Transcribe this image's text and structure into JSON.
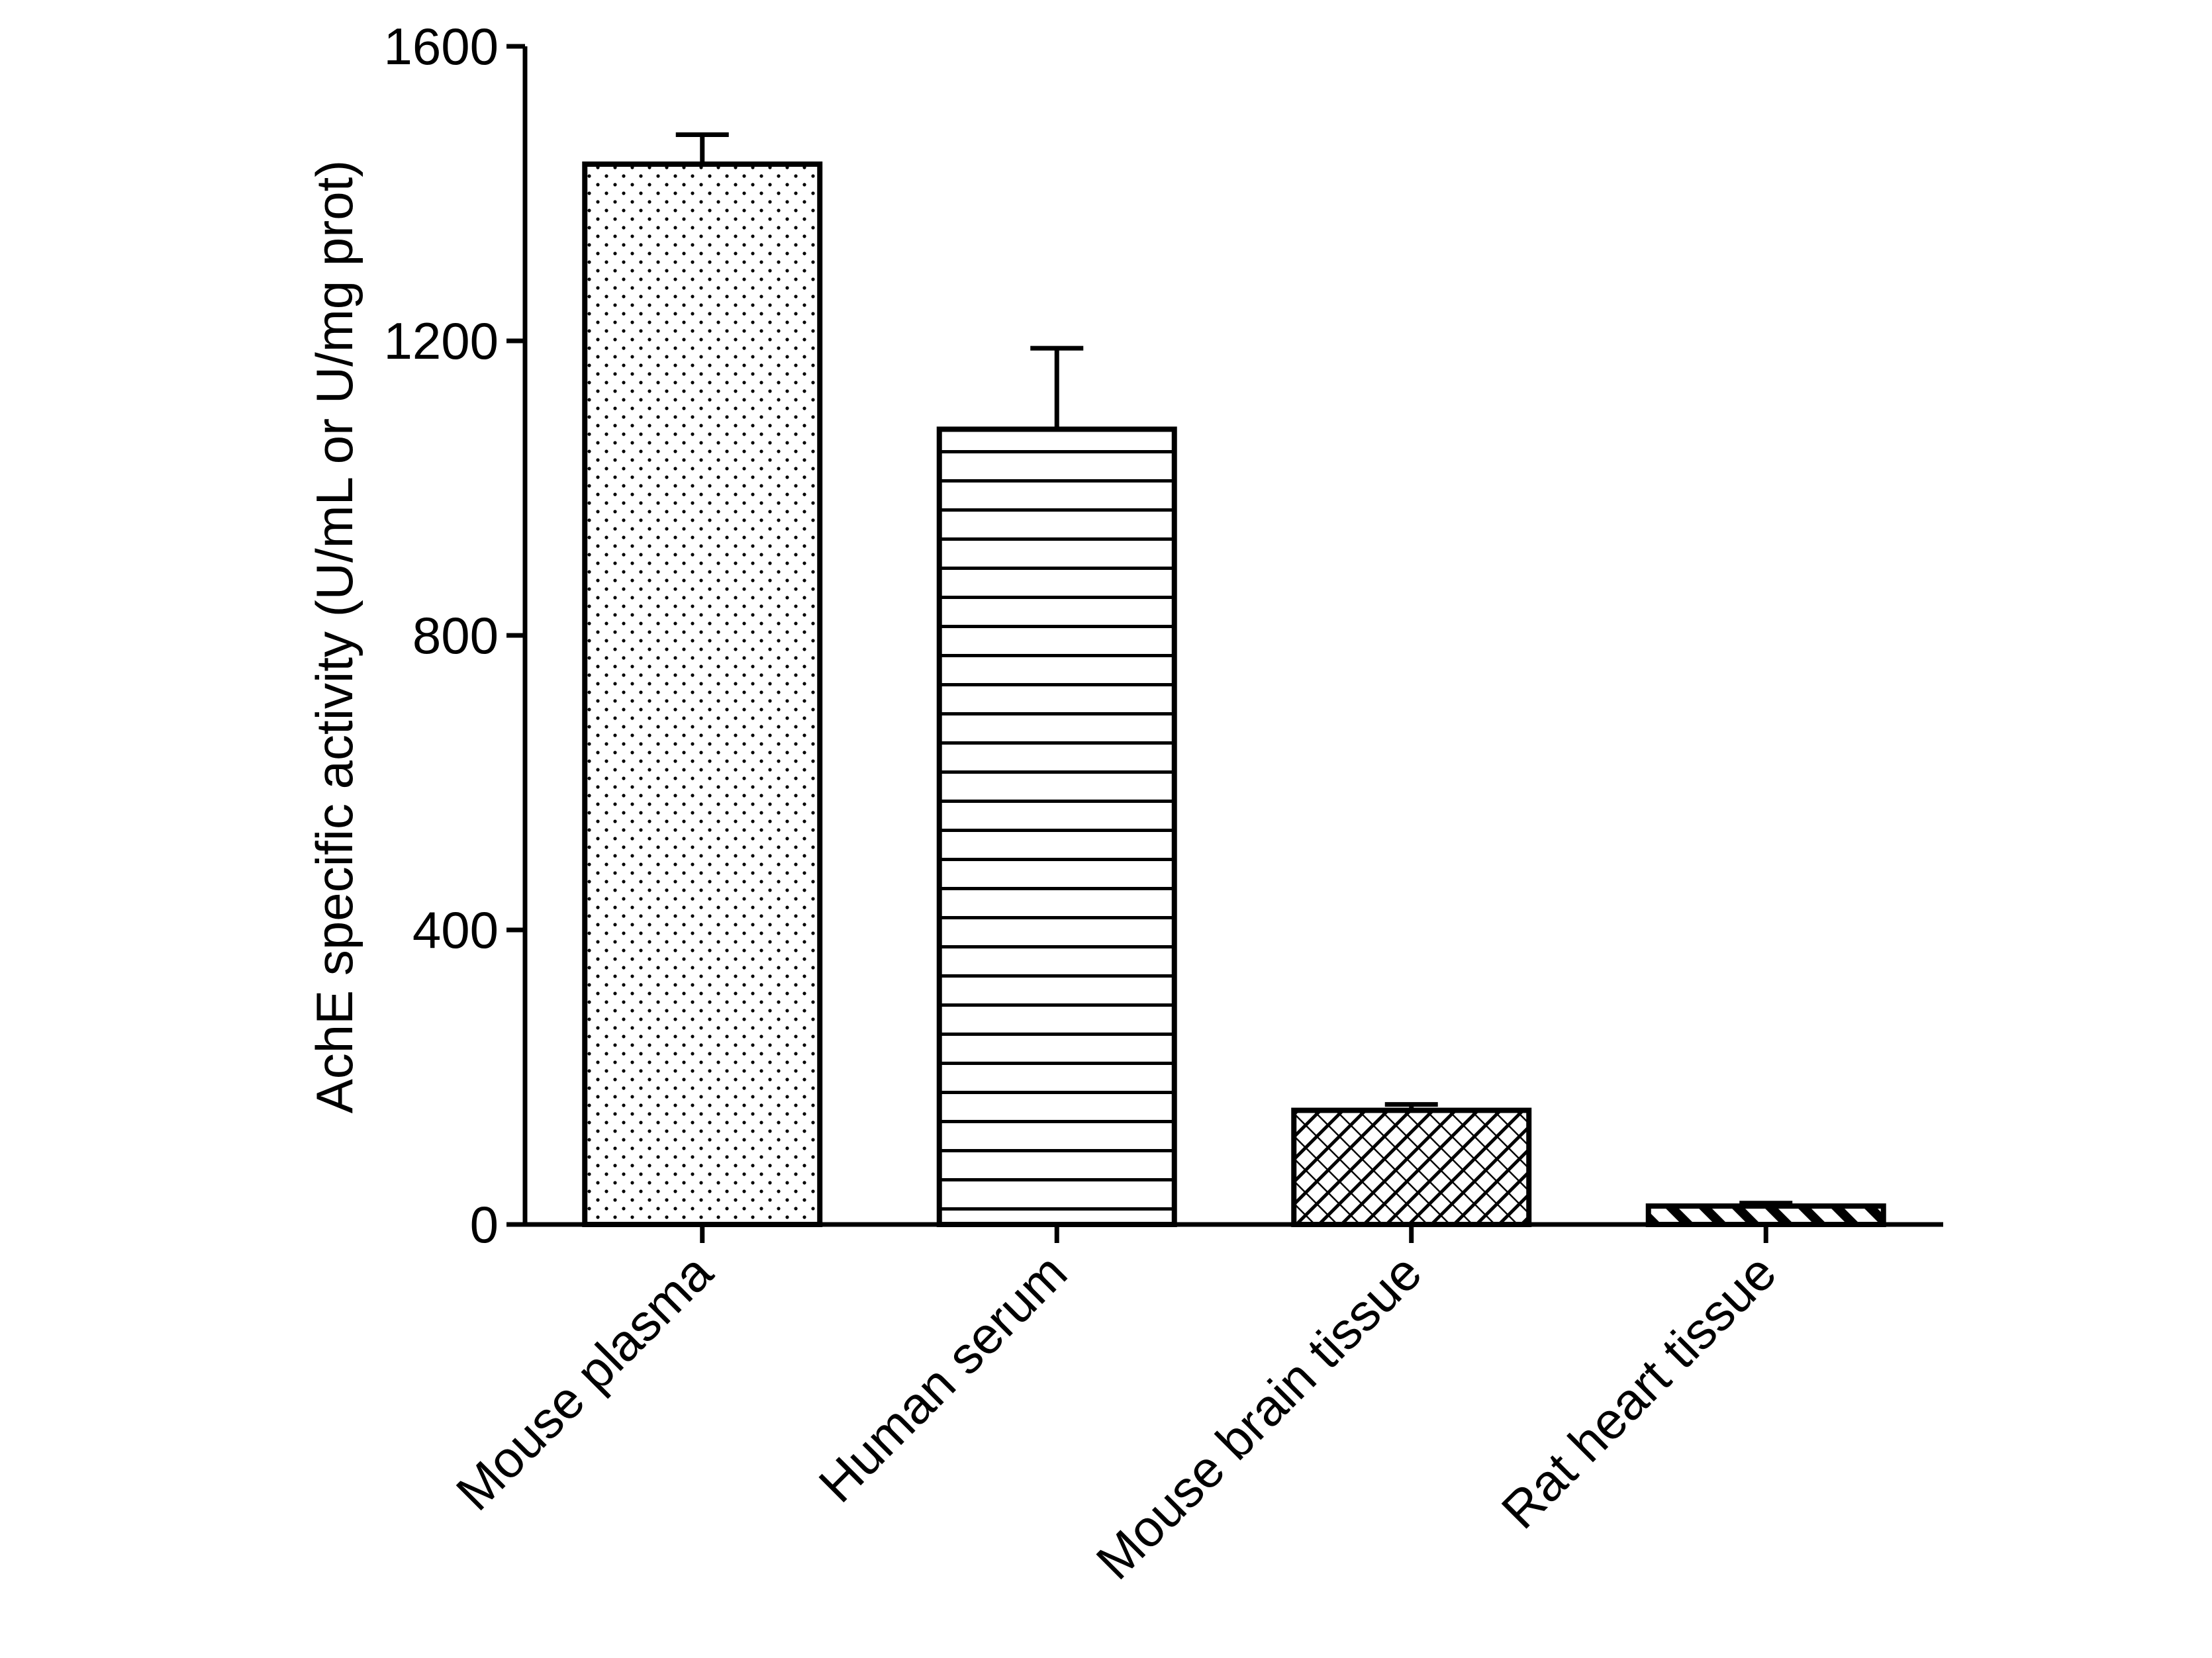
{
  "chart_data": {
    "type": "bar",
    "title": "",
    "xlabel": "",
    "ylabel": "AchE specific activity (U/mL or U/mg prot)",
    "ylim": [
      0,
      1600
    ],
    "yticks": [
      0,
      400,
      800,
      1200,
      1600
    ],
    "grid": false,
    "legend": "none",
    "categories": [
      "Mouse plasma",
      "Human serum",
      "Mouse brain tissue",
      "Rat heart tissue"
    ],
    "values": [
      1440,
      1080,
      155,
      25
    ],
    "error_bars": [
      40,
      110,
      8,
      4
    ],
    "patterns": [
      "dots",
      "horizontal-lines",
      "diagonal-crosshatch",
      "diagonal-stripes"
    ],
    "colors": {
      "bar_fill": "#ffffff",
      "bar_stroke": "#000000",
      "axis": "#000000"
    }
  }
}
